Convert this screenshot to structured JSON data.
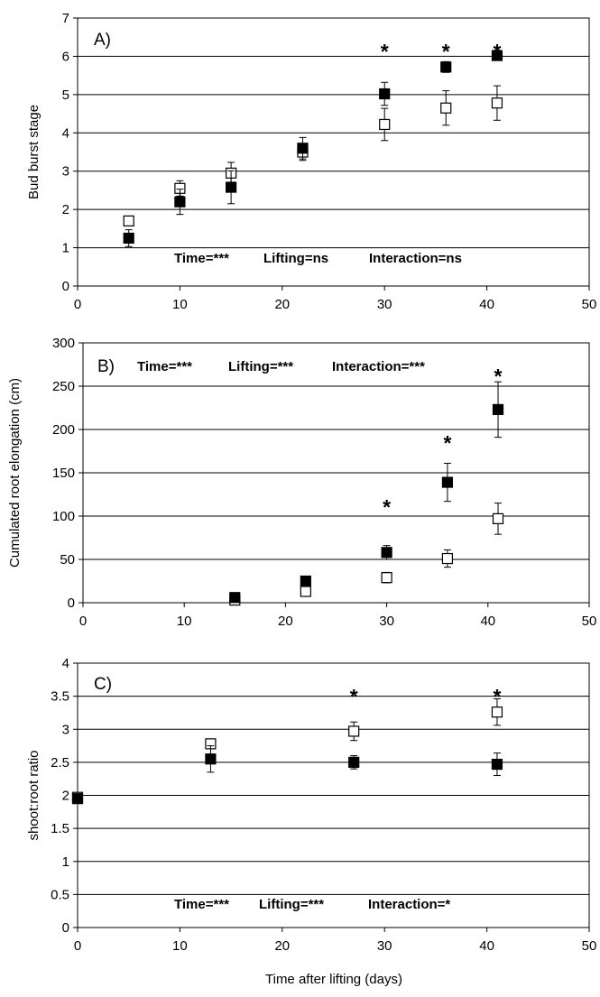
{
  "figure": {
    "xlabel": "Time after lifting (days)"
  },
  "chart_data": [
    {
      "type": "scatter",
      "panel_label": "A)",
      "ylabel": "Bud burst stage",
      "xlabel": "",
      "xlim": [
        0,
        50
      ],
      "ylim": [
        0,
        7
      ],
      "xticks": [
        "0",
        "10",
        "20",
        "30",
        "40",
        "50"
      ],
      "yticks": [
        "0",
        "1",
        "2",
        "3",
        "4",
        "5",
        "6",
        "7"
      ],
      "grid": true,
      "stats": [
        "Time=***",
        "Lifting=ns",
        "Interaction=ns"
      ],
      "series": [
        {
          "marker": "filled-square",
          "x": [
            5,
            10,
            15,
            22,
            30,
            36,
            41
          ],
          "y": [
            1.25,
            2.2,
            2.58,
            3.6,
            5.02,
            5.72,
            6.02
          ],
          "err": [
            0.22,
            0.33,
            0.43,
            0.28,
            0.3,
            0.14,
            0.06
          ]
        },
        {
          "marker": "open-square",
          "x": [
            5,
            10,
            15,
            22,
            30,
            36,
            41
          ],
          "y": [
            1.7,
            2.55,
            2.95,
            3.5,
            4.22,
            4.65,
            4.78
          ],
          "err": [
            0.12,
            0.2,
            0.28,
            0.22,
            0.42,
            0.45,
            0.45
          ]
        }
      ],
      "significance": {
        "symbol": "*",
        "x": [
          30,
          36,
          41
        ]
      }
    },
    {
      "type": "scatter",
      "panel_label": "B)",
      "ylabel": "Cumulated root elongation (cm)",
      "xlabel": "",
      "xlim": [
        0,
        50
      ],
      "ylim": [
        0,
        300
      ],
      "xticks": [
        "0",
        "10",
        "20",
        "30",
        "40",
        "50"
      ],
      "yticks": [
        "0",
        "50",
        "100",
        "150",
        "200",
        "250",
        "300"
      ],
      "grid": true,
      "stats": [
        "Time=***",
        "Lifting=***",
        "Interaction=***"
      ],
      "series": [
        {
          "marker": "filled-square",
          "x": [
            15,
            22,
            30,
            36,
            41
          ],
          "y": [
            6,
            25,
            58,
            139,
            223
          ],
          "err": [
            3,
            5,
            8,
            22,
            32
          ]
        },
        {
          "marker": "open-square",
          "x": [
            15,
            22,
            30,
            36,
            41
          ],
          "y": [
            3,
            13,
            29,
            51,
            97
          ],
          "err": [
            2,
            4,
            6,
            10,
            18
          ]
        }
      ],
      "significance": {
        "symbol": "*",
        "x": [
          30,
          36,
          41
        ]
      }
    },
    {
      "type": "scatter",
      "panel_label": "C)",
      "ylabel": "shoot:root ratio",
      "xlabel": "Time after lifting (days)",
      "xlim": [
        0,
        50
      ],
      "ylim": [
        0,
        4
      ],
      "xticks": [
        "0",
        "10",
        "20",
        "30",
        "40",
        "50"
      ],
      "yticks": [
        "0",
        "0.5",
        "1",
        "1.5",
        "2",
        "2.5",
        "3",
        "3.5",
        "4"
      ],
      "grid": true,
      "stats": [
        "Time=***",
        "Lifting=***",
        "Interaction=*"
      ],
      "series": [
        {
          "marker": "filled-square",
          "x": [
            0,
            13,
            27,
            41
          ],
          "y": [
            1.95,
            2.55,
            2.5,
            2.47
          ],
          "err": [
            0.03,
            0.2,
            0.1,
            0.17
          ]
        },
        {
          "marker": "open-square",
          "x": [
            0,
            13,
            27,
            41
          ],
          "y": [
            1.97,
            2.78,
            2.97,
            3.26
          ],
          "err": [
            0.03,
            0.06,
            0.14,
            0.2
          ]
        }
      ],
      "significance": {
        "symbol": "*",
        "x": [
          27,
          41
        ]
      }
    }
  ]
}
